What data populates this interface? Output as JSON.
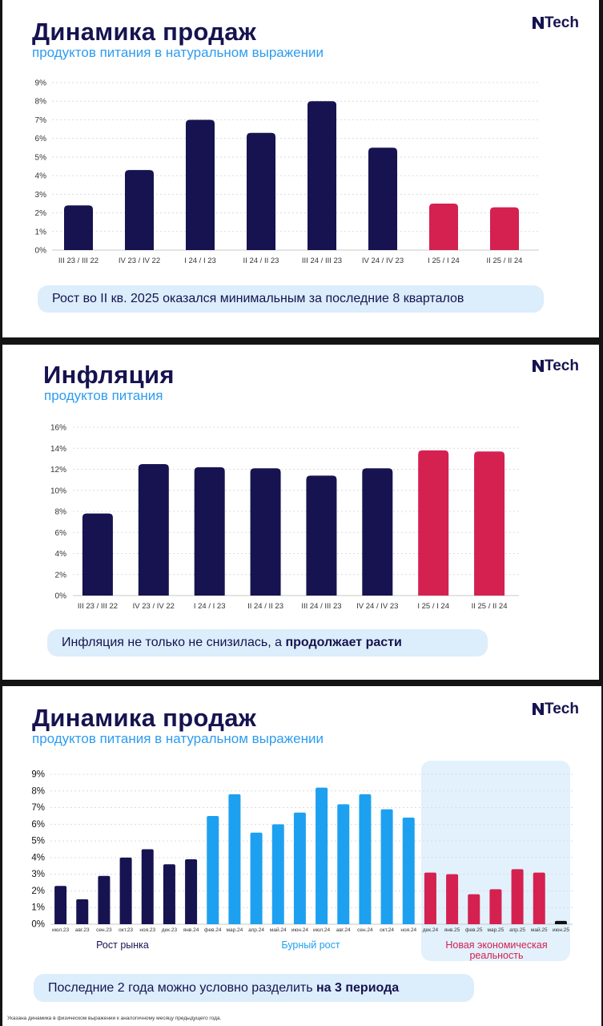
{
  "brand": "Tech",
  "colors": {
    "navy": "#161350",
    "red": "#d42150",
    "blue": "#1ea0f0",
    "subtitle": "#2d9cf0",
    "callout_bg": "#dcedfb",
    "panel_bg": "#e2f1fc"
  },
  "slide1": {
    "title": "Динамика продаж",
    "subtitle": "продуктов питания в натуральном выражении",
    "callout": "Рост во II кв. 2025 оказался минимальным за последние 8 кварталов",
    "chart_data": {
      "type": "bar",
      "categories": [
        "III 23 / III 22",
        "IV 23 / IV 22",
        "I 24 / I 23",
        "II 24 / II 23",
        "III 24 / III 23",
        "IV 24 / IV 23",
        "I 25 / I 24",
        "II 25 / II 24"
      ],
      "values": [
        2.4,
        4.3,
        7.0,
        6.3,
        8.0,
        5.5,
        2.5,
        2.3
      ],
      "bar_colors": [
        "navy",
        "navy",
        "navy",
        "navy",
        "navy",
        "navy",
        "red",
        "red"
      ],
      "yticks": [
        "0%",
        "1%",
        "2%",
        "3%",
        "4%",
        "5%",
        "6%",
        "7%",
        "8%",
        "9%"
      ],
      "ylim": [
        0,
        9
      ],
      "grid": true
    }
  },
  "slide2": {
    "title": "Инфляция",
    "subtitle": "продуктов питания",
    "callout_plain": "Инфляция не только не снизилась, а ",
    "callout_bold": "продолжает расти",
    "chart_data": {
      "type": "bar",
      "categories": [
        "III 23 / III 22",
        "IV 23 / IV 22",
        "I 24 / I 23",
        "II 24 / II 23",
        "III 24 / III 23",
        "IV 24 / IV 23",
        "I 25 / I 24",
        "II 25 / II 24"
      ],
      "values": [
        7.8,
        12.5,
        12.2,
        12.1,
        11.4,
        12.1,
        13.8,
        13.7
      ],
      "bar_colors": [
        "navy",
        "navy",
        "navy",
        "navy",
        "navy",
        "navy",
        "red",
        "red"
      ],
      "yticks": [
        "0%",
        "2%",
        "4%",
        "6%",
        "8%",
        "10%",
        "12%",
        "14%",
        "16%"
      ],
      "ylim": [
        0,
        16
      ],
      "grid": true
    }
  },
  "slide3": {
    "title": "Динамика продаж",
    "subtitle": "продуктов питания в натуральном выражении",
    "callout_plain": "Последние 2 года можно условно разделить ",
    "callout_bold": "на 3 периода",
    "footnote": "Указана динамика в физическом выражении к аналогичному месяцу предыдущего года.",
    "periods": [
      {
        "label": "Рост рынка",
        "color": "navy"
      },
      {
        "label": "Бурный рост",
        "color": "blue"
      },
      {
        "label": "Новая экономическая реальность",
        "color": "red"
      }
    ],
    "chart_data": {
      "type": "bar",
      "categories": [
        "июл.23",
        "авг.23",
        "сен.23",
        "окт.23",
        "ноя.23",
        "дек.23",
        "янв.24",
        "фев.24",
        "мар.24",
        "апр.24",
        "май.24",
        "июн.24",
        "июл.24",
        "авг.24",
        "сен.24",
        "окт.24",
        "ноя.24",
        "дек.24",
        "янв.25",
        "фев.25",
        "мар.25",
        "апр.25",
        "май.25",
        "июн.25"
      ],
      "values": [
        2.3,
        1.5,
        2.9,
        4.0,
        4.5,
        3.6,
        3.9,
        6.5,
        7.8,
        5.5,
        6.0,
        6.7,
        8.2,
        7.2,
        7.8,
        6.9,
        6.4,
        3.1,
        3.0,
        1.8,
        2.1,
        3.3,
        3.1,
        0.2
      ],
      "bar_colors": [
        "navy",
        "navy",
        "navy",
        "navy",
        "navy",
        "navy",
        "navy",
        "blue",
        "blue",
        "blue",
        "blue",
        "blue",
        "blue",
        "blue",
        "blue",
        "blue",
        "blue",
        "red",
        "red",
        "red",
        "red",
        "red",
        "red",
        "black"
      ],
      "yticks": [
        "0%",
        "1%",
        "2%",
        "3%",
        "4%",
        "5%",
        "6%",
        "7%",
        "8%",
        "9%"
      ],
      "ylim": [
        0,
        9
      ],
      "grid": true
    }
  }
}
